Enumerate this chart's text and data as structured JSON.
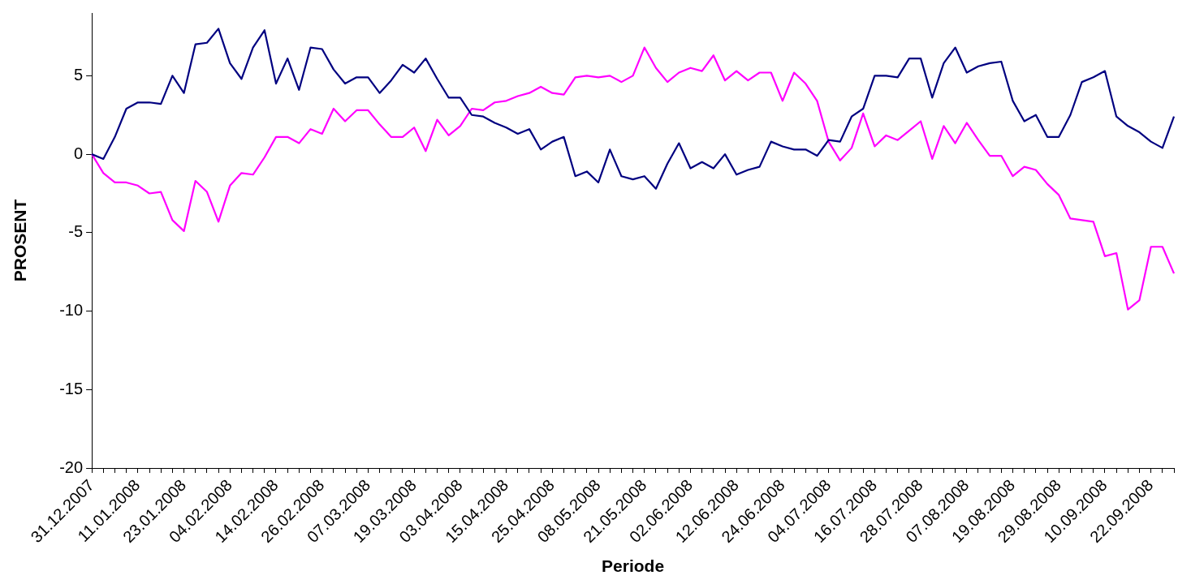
{
  "chart_data": {
    "type": "line",
    "xlabel": "Periode",
    "ylabel": "PROSENT",
    "categories": [
      "31.12.2007",
      null,
      null,
      null,
      "11.01.2008",
      null,
      null,
      null,
      "23.01.2008",
      null,
      null,
      null,
      "04.02.2008",
      null,
      null,
      null,
      "14.02.2008",
      null,
      null,
      null,
      "26.02.2008",
      null,
      null,
      null,
      "07.03.2008",
      null,
      null,
      null,
      "19.03.2008",
      null,
      null,
      null,
      "03.04.2008",
      null,
      null,
      null,
      "15.04.2008",
      null,
      null,
      null,
      "25.04.2008",
      null,
      null,
      null,
      "08.05.2008",
      null,
      null,
      null,
      "21.05.2008",
      null,
      null,
      null,
      "02.06.2008",
      null,
      null,
      null,
      "12.06.2008",
      null,
      null,
      null,
      "24.06.2008",
      null,
      null,
      null,
      "04.07.2008",
      null,
      null,
      null,
      "16.07.2008",
      null,
      null,
      null,
      "28.07.2008",
      null,
      null,
      null,
      "07.08.2008",
      null,
      null,
      null,
      "19.08.2008",
      null,
      null,
      null,
      "29.08.2008",
      null,
      null,
      null,
      "10.09.2008",
      null,
      null,
      null,
      "22.09.2008",
      null,
      null
    ],
    "series": [
      {
        "color": "#000080",
        "values": [
          0,
          -0.3,
          1.1,
          2.9,
          3.3,
          3.3,
          3.2,
          5.0,
          3.9,
          7.0,
          7.1,
          8.0,
          5.8,
          4.8,
          6.8,
          7.9,
          4.5,
          6.1,
          4.1,
          6.8,
          6.7,
          5.4,
          4.5,
          4.9,
          4.9,
          3.9,
          4.7,
          5.7,
          5.2,
          6.1,
          4.8,
          3.6,
          3.6,
          2.5,
          2.4,
          2.0,
          1.7,
          1.3,
          1.6,
          0.3,
          0.8,
          1.1,
          -1.4,
          -1.1,
          -1.8,
          0.3,
          -1.4,
          -1.6,
          -1.4,
          -2.2,
          -0.6,
          0.7,
          -0.9,
          -0.5,
          -0.9,
          0,
          -1.3,
          -1.0,
          -0.8,
          0.8,
          0.5,
          0.3,
          0.3,
          -0.1,
          0.9,
          0.8,
          2.4,
          2.9,
          5.0,
          5.0,
          4.9,
          6.1,
          6.1,
          3.6,
          5.8,
          6.8,
          5.2,
          5.6,
          5.8,
          5.9,
          3.4,
          2.1,
          2.5,
          1.1,
          1.1,
          2.5,
          4.6,
          4.9,
          5.3,
          2.4,
          1.8,
          1.4,
          0.8,
          0.4,
          2.4
        ]
      },
      {
        "color": "#ff00ff",
        "values": [
          0,
          -1.2,
          -1.8,
          -1.8,
          -2.0,
          -2.5,
          -2.4,
          -4.2,
          -4.9,
          -1.7,
          -2.4,
          -4.3,
          -2.0,
          -1.2,
          -1.3,
          -0.2,
          1.1,
          1.1,
          0.7,
          1.6,
          1.3,
          2.9,
          2.1,
          2.8,
          2.8,
          1.9,
          1.1,
          1.1,
          1.7,
          0.2,
          2.2,
          1.2,
          1.8,
          2.9,
          2.8,
          3.3,
          3.4,
          3.7,
          3.9,
          4.3,
          3.9,
          3.8,
          4.9,
          5.0,
          4.9,
          5.0,
          4.6,
          5.0,
          6.8,
          5.5,
          4.6,
          5.2,
          5.5,
          5.3,
          6.3,
          4.7,
          5.3,
          4.7,
          5.2,
          5.2,
          3.4,
          5.2,
          4.5,
          3.4,
          0.8,
          -0.4,
          0.4,
          2.6,
          0.5,
          1.2,
          0.9,
          1.5,
          2.1,
          -0.3,
          1.8,
          0.7,
          2.0,
          0.9,
          -0.1,
          -0.1,
          -1.4,
          -0.8,
          -1.0,
          -1.9,
          -2.6,
          -4.1,
          -4.2,
          -4.3,
          -6.5,
          -6.3,
          -9.9,
          -9.3,
          -5.9,
          -5.9,
          -7.6
        ]
      }
    ],
    "ylim": [
      -20,
      9
    ],
    "yticks": [
      -20,
      -15,
      -10,
      -5,
      0,
      5
    ],
    "grid": false,
    "legend": false,
    "marker": "none",
    "line_style": "solid"
  }
}
